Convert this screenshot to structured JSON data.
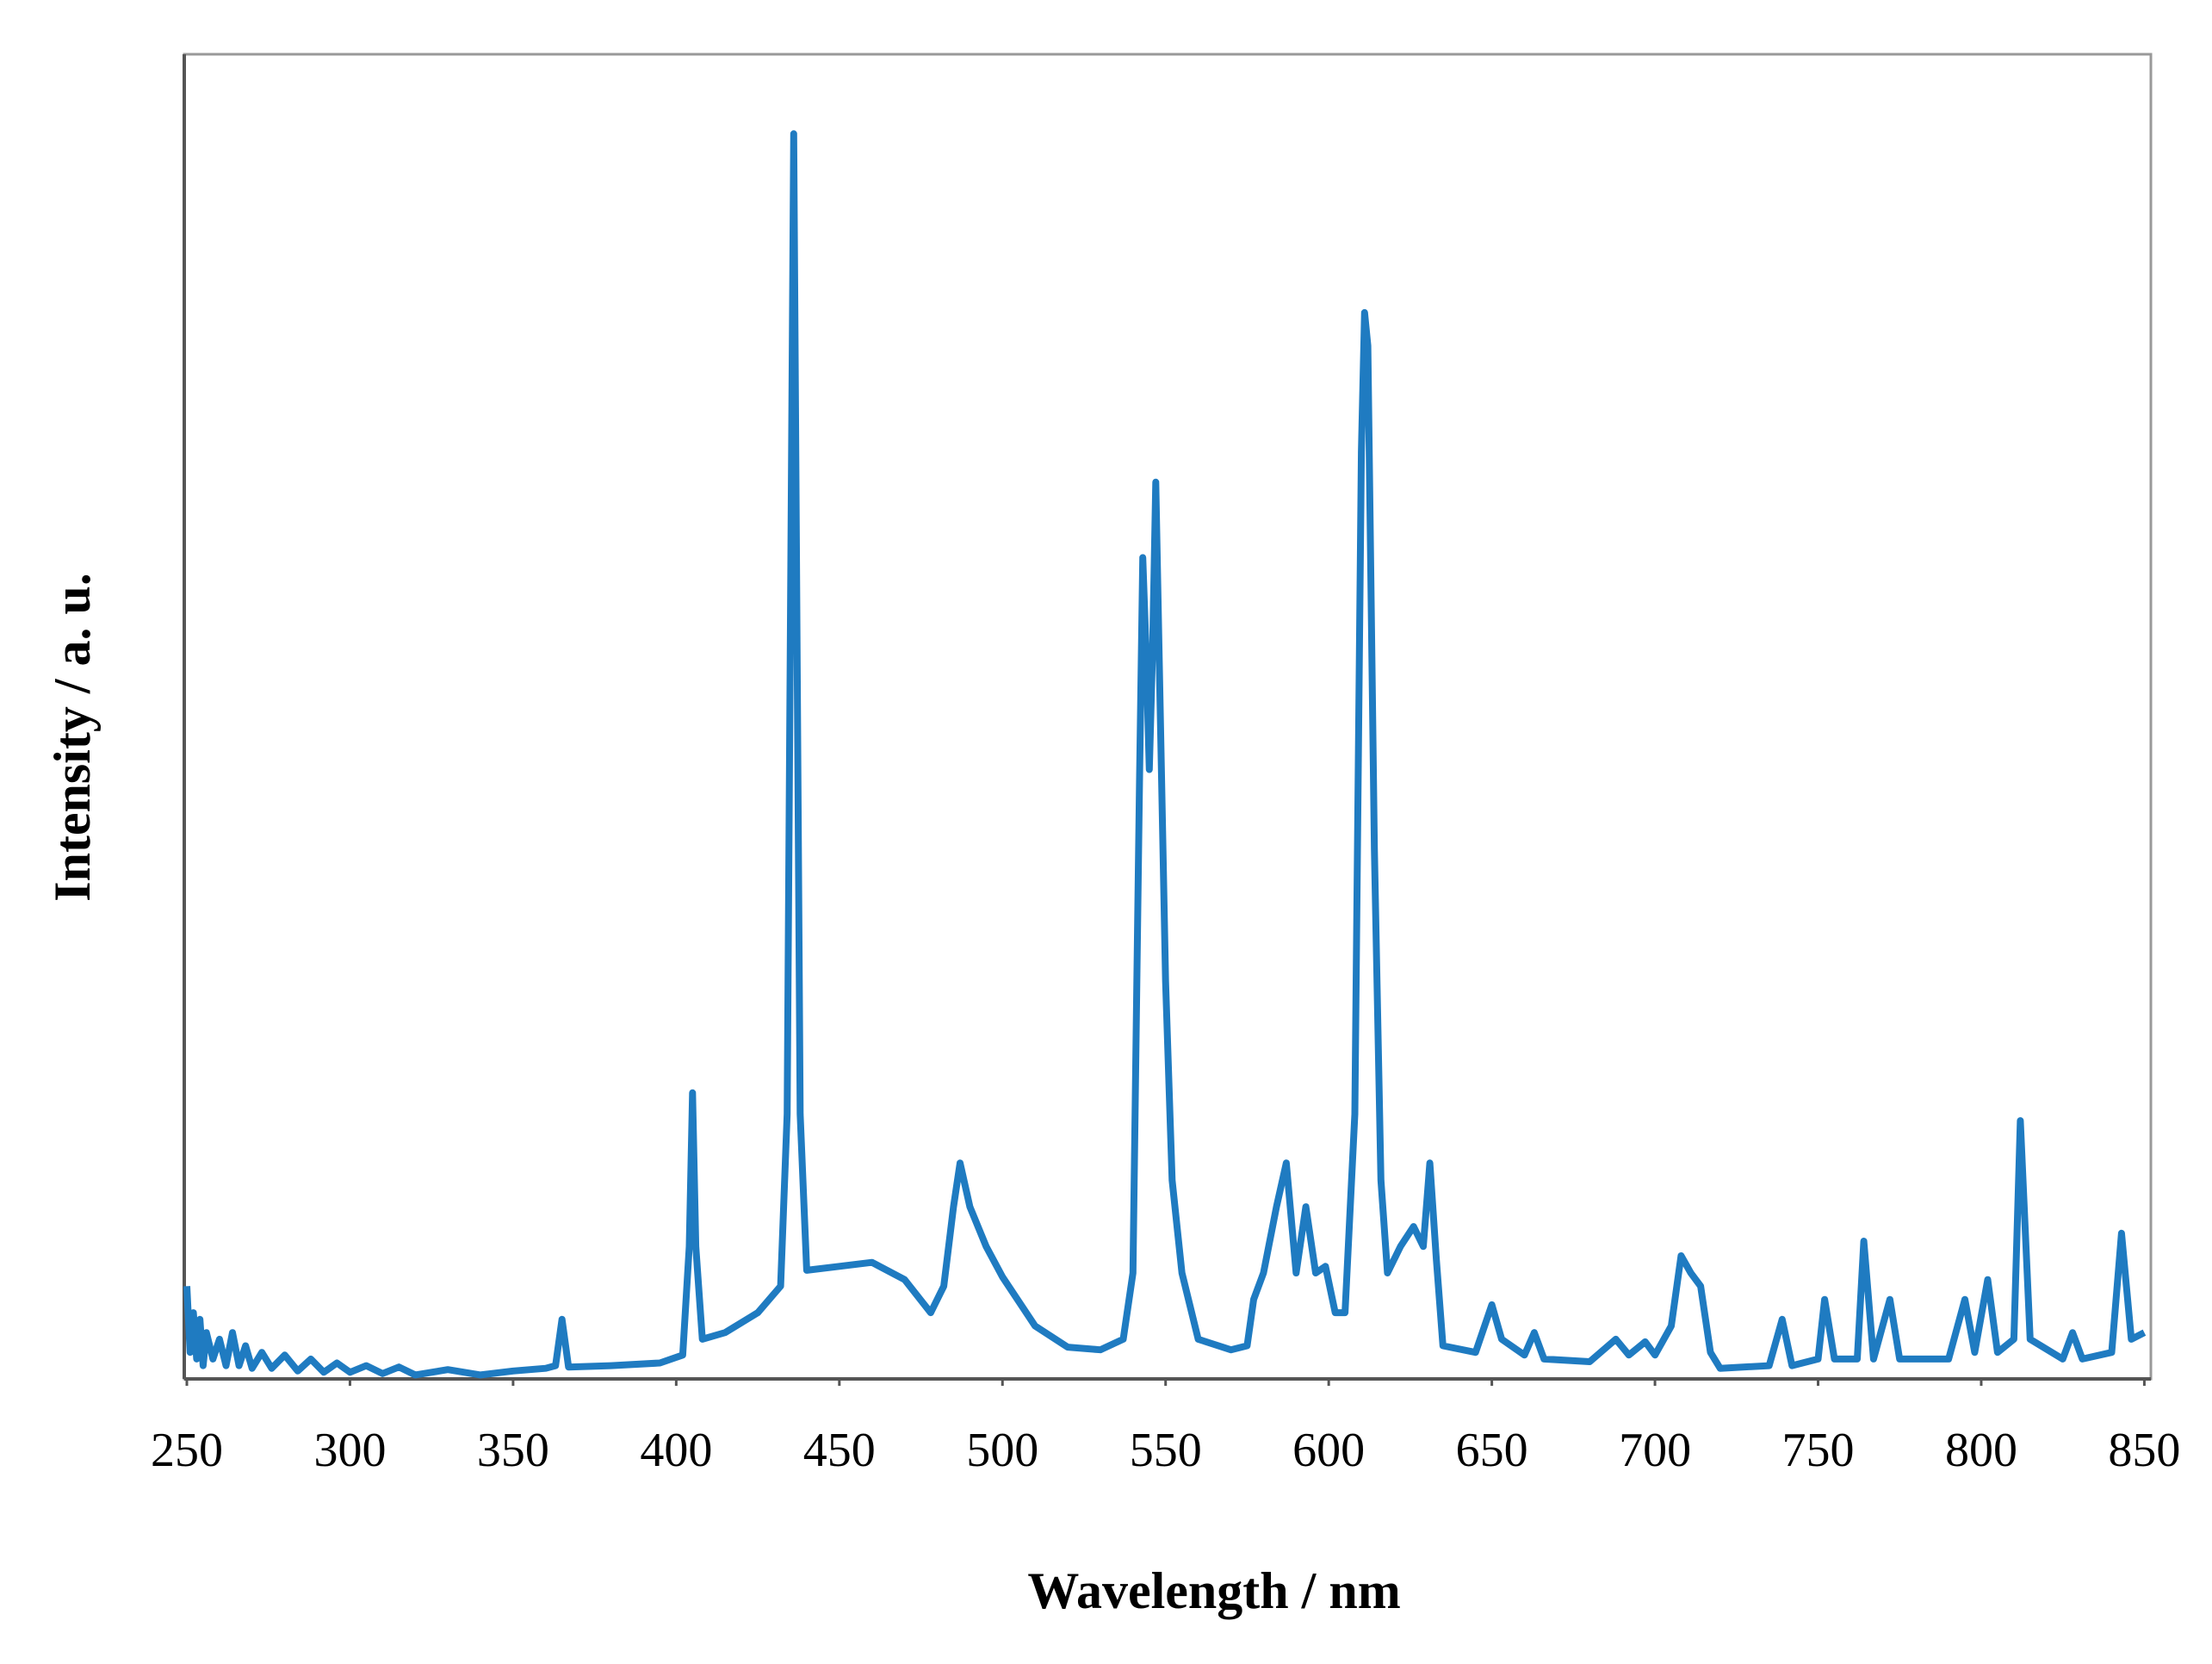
{
  "chart_data": {
    "type": "line",
    "x_label": "Wavelength / nm",
    "y_label": "Intensity / a. u.",
    "xlim": [
      250,
      852
    ],
    "ylim": [
      0,
      100
    ],
    "xticks": [
      250,
      300,
      350,
      400,
      450,
      500,
      550,
      600,
      650,
      700,
      750,
      800,
      850
    ],
    "series": [
      {
        "color": "#1f7bc1",
        "x": [
          250,
          251,
          252,
          253,
          254,
          255,
          256,
          258,
          260,
          262,
          264,
          266,
          268,
          270,
          273,
          276,
          280,
          284,
          288,
          292,
          296,
          300,
          305,
          310,
          315,
          320,
          330,
          340,
          350,
          360,
          363,
          365,
          367,
          380,
          395,
          402,
          404,
          405,
          406,
          408,
          415,
          425,
          432,
          434,
          436,
          438,
          440,
          450,
          460,
          470,
          478,
          482,
          485,
          487,
          490,
          495,
          500,
          510,
          520,
          530,
          537,
          540,
          542,
          543,
          544,
          545,
          546,
          547,
          548,
          550,
          552,
          555,
          560,
          570,
          575,
          577,
          580,
          584,
          587,
          590,
          593,
          596,
          599,
          602,
          605,
          608,
          610,
          611,
          612,
          614,
          616,
          618,
          622,
          626,
          629,
          631,
          633,
          635,
          645,
          650,
          653,
          660,
          663,
          666,
          680,
          688,
          692,
          697,
          700,
          705,
          708,
          711,
          714,
          717,
          720,
          735,
          739,
          742,
          750,
          752,
          755,
          762,
          764,
          767,
          772,
          775,
          790,
          795,
          798,
          802,
          805,
          810,
          812,
          815,
          825,
          828,
          831,
          840,
          843,
          846,
          850
        ],
        "values": [
          7,
          2,
          5,
          1.5,
          4.5,
          1,
          3.5,
          1.5,
          3,
          1,
          3.5,
          1,
          2.5,
          0.8,
          2,
          0.8,
          1.8,
          0.6,
          1.5,
          0.5,
          1.2,
          0.5,
          1,
          0.4,
          0.9,
          0.3,
          0.7,
          0.3,
          0.6,
          0.8,
          1,
          4.5,
          0.9,
          1,
          1.2,
          1.8,
          10,
          21.6,
          10,
          3,
          3.5,
          5,
          7,
          20,
          94,
          20,
          8.2,
          8.5,
          8.8,
          7.5,
          5,
          7,
          13,
          16.3,
          13,
          10,
          7.7,
          4,
          2.4,
          2.2,
          3,
          8,
          45,
          62,
          55,
          46,
          55,
          67.7,
          55,
          30,
          15,
          8,
          3,
          2.2,
          2.5,
          6,
          8,
          13,
          16.3,
          8,
          13,
          8,
          8.5,
          5,
          5,
          20,
          70,
          80.5,
          78,
          40,
          15,
          8,
          10,
          11.5,
          10,
          16.3,
          9,
          2.5,
          2,
          5.6,
          3,
          1.8,
          3.5,
          1.5,
          1.3,
          3,
          1.8,
          2.8,
          1.8,
          4,
          9.3,
          8,
          7,
          2,
          0.8,
          1,
          4.5,
          1,
          1.5,
          6,
          1.5,
          1.5,
          10.4,
          1.5,
          6,
          1.5,
          1.5,
          6,
          2,
          7.5,
          2,
          3,
          19.5,
          3,
          1.5,
          3.5,
          1.5,
          2,
          11,
          3,
          3.5
        ]
      }
    ]
  }
}
